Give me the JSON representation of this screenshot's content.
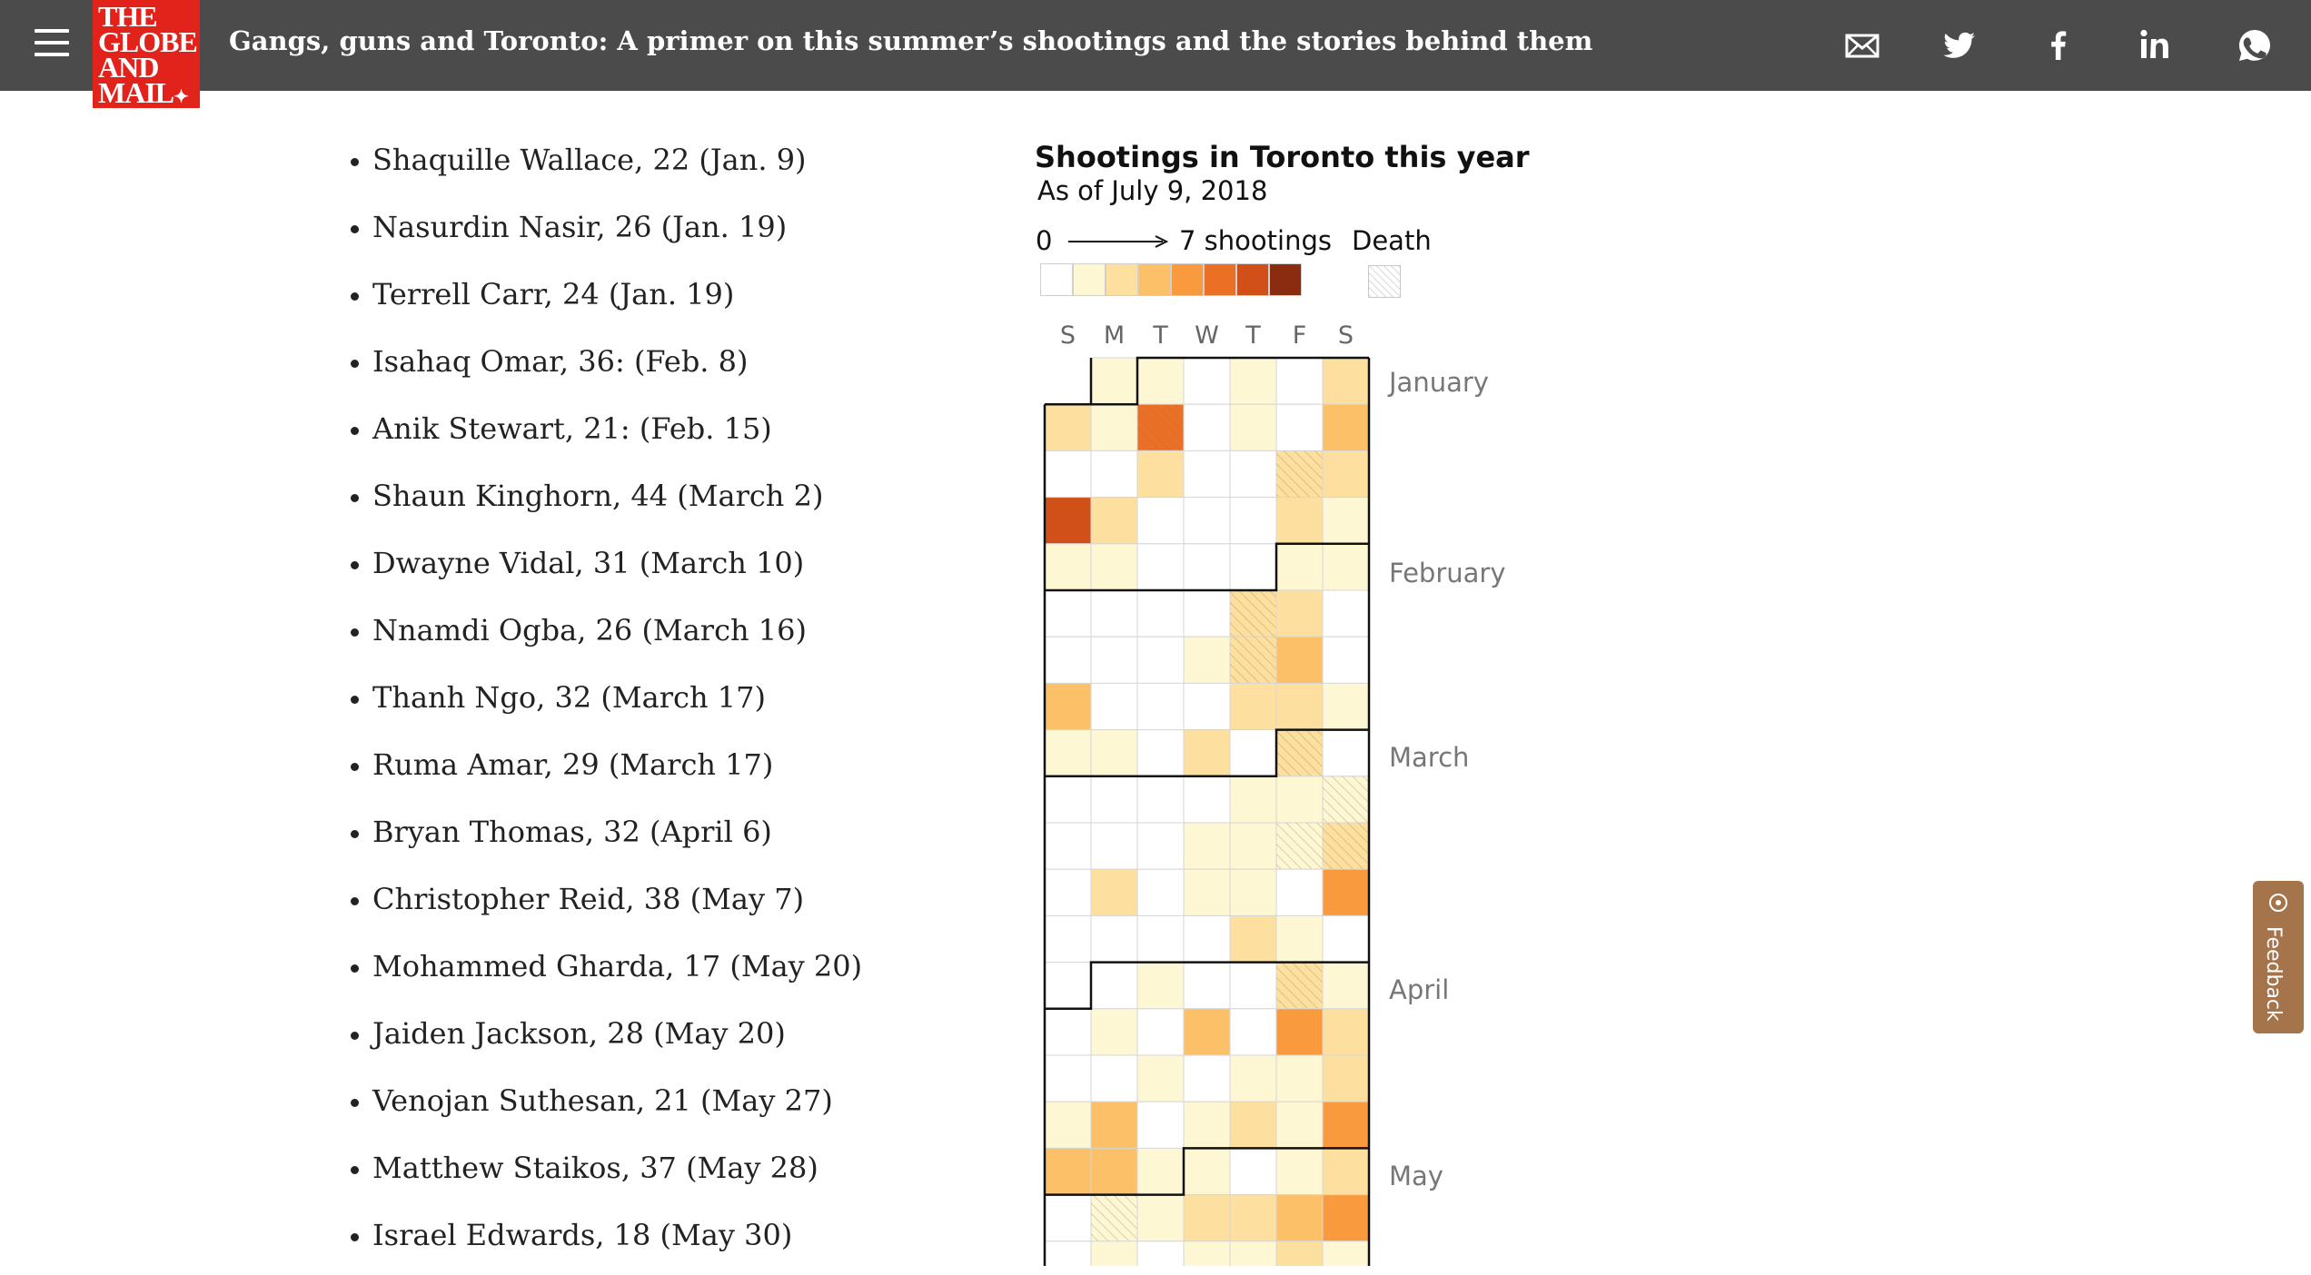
{
  "header": {
    "logo_lines": [
      "THE",
      "GLOBE",
      "AND",
      "MAIL"
    ],
    "headline": "Gangs, guns and Toronto: A primer on this summer’s shootings and the stories behind them",
    "share_icons": [
      "email-icon",
      "twitter-icon",
      "facebook-icon",
      "linkedin-icon",
      "whatsapp-icon"
    ]
  },
  "victims": [
    "Shaquille Wallace, 22 (Jan. 9)",
    "Nasurdin Nasir, 26 (Jan. 19)",
    "Terrell Carr, 24 (Jan. 19)",
    "Isahaq Omar, 36: (Feb. 8)",
    "Anik Stewart, 21: (Feb. 15)",
    "Shaun Kinghorn, 44 (March 2)",
    "Dwayne Vidal, 31 (March 10)",
    "Nnamdi Ogba, 26 (March 16)",
    "Thanh Ngo, 32 (March 17)",
    "Ruma Amar, 29 (March 17)",
    "Bryan Thomas, 32 (April 6)",
    "Christopher Reid, 38 (May 7)",
    "Mohammed Gharda, 17 (May 20)",
    "Jaiden Jackson, 28 (May 20)",
    "Venojan Suthesan, 21 (May 27)",
    "Matthew Staikos, 37 (May 28)",
    "Israel Edwards, 18 (May 30)"
  ],
  "graphic": {
    "title": "Shootings in Toronto this year",
    "subtitle": "As of July 9, 2018",
    "legend_min": "0",
    "legend_max": "7 shootings",
    "legend_death": "Death",
    "days": [
      "S",
      "M",
      "T",
      "W",
      "T",
      "F",
      "S"
    ],
    "months": [
      "January",
      "February",
      "March",
      "April",
      "May"
    ]
  },
  "chart_data": {
    "type": "heatmap",
    "title": "Shootings in Toronto this year",
    "subtitle": "As of July 9, 2018",
    "x_categories": [
      "S",
      "M",
      "T",
      "W",
      "T",
      "F",
      "S"
    ],
    "value_range": [
      0,
      7
    ],
    "scale_colors": [
      "#ffffff",
      "#fef7d4",
      "#fde0a0",
      "#fcc168",
      "#f99a3e",
      "#eb7026",
      "#d05018",
      "#8a2c10"
    ],
    "start_date": "2018-01-01",
    "weeks": [
      [
        null,
        1,
        1,
        0,
        1,
        0,
        2
      ],
      [
        2,
        1,
        5,
        0,
        1,
        0,
        3
      ],
      [
        0,
        0,
        2,
        0,
        0,
        2,
        2
      ],
      [
        6,
        2,
        0,
        0,
        0,
        2,
        1
      ],
      [
        1,
        1,
        0,
        0,
        0,
        1,
        1
      ],
      [
        0,
        0,
        0,
        0,
        2,
        2,
        0
      ],
      [
        0,
        0,
        0,
        1,
        2,
        3,
        0
      ],
      [
        3,
        0,
        0,
        0,
        2,
        2,
        1
      ],
      [
        1,
        1,
        0,
        2,
        0,
        2,
        0
      ],
      [
        0,
        0,
        0,
        0,
        1,
        1,
        1
      ],
      [
        0,
        0,
        0,
        1,
        1,
        1,
        2
      ],
      [
        0,
        2,
        0,
        1,
        1,
        0,
        4
      ],
      [
        0,
        0,
        0,
        0,
        2,
        1,
        0
      ],
      [
        0,
        0,
        1,
        0,
        0,
        2,
        1
      ],
      [
        0,
        1,
        0,
        3,
        0,
        4,
        2
      ],
      [
        0,
        0,
        1,
        0,
        1,
        1,
        2
      ],
      [
        1,
        3,
        0,
        1,
        2,
        1,
        4
      ],
      [
        3,
        3,
        1,
        1,
        0,
        1,
        2
      ],
      [
        0,
        1,
        1,
        2,
        2,
        3,
        4
      ],
      [
        0,
        1,
        0,
        1,
        1,
        2,
        1
      ]
    ],
    "death_days": [
      "2018-01-09",
      "2018-01-19",
      "2018-02-08",
      "2018-02-15",
      "2018-03-02",
      "2018-03-10",
      "2018-03-16",
      "2018-03-17",
      "2018-04-06",
      "2018-05-07"
    ],
    "month_starts": {
      "January": "2018-01-01",
      "February": "2018-02-01",
      "March": "2018-03-01",
      "April": "2018-04-01",
      "May": "2018-05-01"
    }
  },
  "feedback": {
    "label": "Feedback"
  }
}
